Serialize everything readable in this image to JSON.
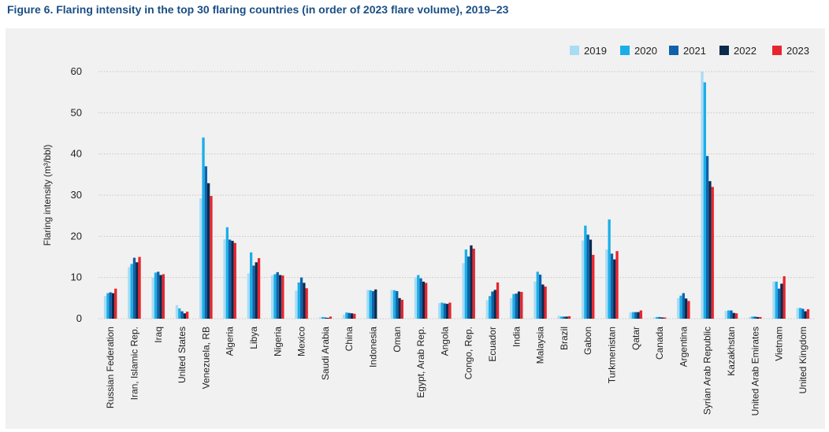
{
  "figure_title": "Figure 6. Flaring intensity in the top 30 flaring countries (in order of 2023 flare volume), 2019–23",
  "colors": {
    "2019": "#a8dcf5",
    "2020": "#1aaee8",
    "2021": "#0f62aa",
    "2022": "#0b2a4c",
    "2023": "#e8252f"
  },
  "chart_data": {
    "type": "bar",
    "title": "Figure 6. Flaring intensity in the top 30 flaring countries (in order of 2023 flare volume), 2019–23",
    "ylabel": "Flaring intensity (m³/bbl)",
    "xlabel": "",
    "ylim": [
      0,
      60
    ],
    "yticks": [
      0,
      10,
      20,
      30,
      40,
      50,
      60
    ],
    "grid": true,
    "legend_position": "top-right",
    "categories": [
      "Russian Federation",
      "Iran, Islamic Rep.",
      "Iraq",
      "United States",
      "Venezuela, RB",
      "Algeria",
      "Libya",
      "Nigeria",
      "Mexico",
      "Saudi Arabia",
      "China",
      "Indonesia",
      "Oman",
      "Egypt, Arab Rep.",
      "Angola",
      "Congo, Rep.",
      "Ecuador",
      "India",
      "Malaysia",
      "Brazil",
      "Gabon",
      "Turkmenistan",
      "Qatar",
      "Canada",
      "Argentina",
      "Syrian Arab Republic",
      "Kazakhstan",
      "United Arab Emirates",
      "Vietnam",
      "United Kingdom"
    ],
    "series": [
      {
        "name": "2019",
        "values": [
          5.5,
          12.5,
          10.0,
          3.3,
          29.2,
          19.3,
          11.0,
          10.5,
          6.8,
          0.3,
          1.0,
          7.0,
          7.0,
          10.0,
          3.8,
          13.5,
          4.5,
          5.0,
          9.0,
          0.7,
          19.0,
          16.8,
          1.5,
          0.3,
          5.0,
          60.0,
          1.9,
          0.4,
          9.0,
          2.6
        ]
      },
      {
        "name": "2020",
        "values": [
          6.2,
          13.3,
          11.2,
          2.5,
          44.0,
          22.2,
          16.1,
          10.8,
          8.8,
          0.4,
          1.5,
          6.9,
          6.9,
          10.6,
          3.9,
          16.8,
          5.5,
          6.0,
          11.4,
          0.5,
          22.6,
          24.1,
          1.6,
          0.4,
          5.6,
          57.4,
          2.0,
          0.5,
          9.0,
          2.6
        ]
      },
      {
        "name": "2021",
        "values": [
          6.4,
          14.8,
          11.4,
          1.8,
          37.0,
          19.2,
          12.9,
          11.3,
          10.0,
          0.3,
          1.4,
          6.7,
          6.7,
          9.8,
          3.7,
          15.1,
          6.6,
          6.1,
          10.7,
          0.5,
          20.4,
          15.8,
          1.6,
          0.4,
          6.2,
          39.5,
          2.0,
          0.5,
          7.3,
          2.4
        ]
      },
      {
        "name": "2022",
        "values": [
          6.2,
          13.7,
          10.6,
          1.3,
          32.9,
          18.9,
          13.7,
          10.6,
          8.7,
          0.2,
          1.3,
          7.1,
          5.0,
          9.0,
          3.6,
          17.8,
          7.0,
          6.6,
          8.3,
          0.5,
          19.2,
          14.4,
          1.6,
          0.3,
          4.9,
          33.4,
          1.4,
          0.4,
          8.5,
          1.8
        ]
      },
      {
        "name": "2023",
        "values": [
          7.3,
          15.0,
          10.8,
          1.7,
          29.8,
          18.4,
          14.7,
          10.5,
          7.4,
          0.5,
          1.2,
          null,
          4.6,
          8.7,
          3.9,
          17.0,
          8.8,
          6.5,
          7.8,
          0.6,
          15.5,
          16.4,
          2.0,
          0.3,
          4.3,
          32.0,
          1.3,
          0.4,
          10.3,
          2.3
        ]
      }
    ]
  }
}
